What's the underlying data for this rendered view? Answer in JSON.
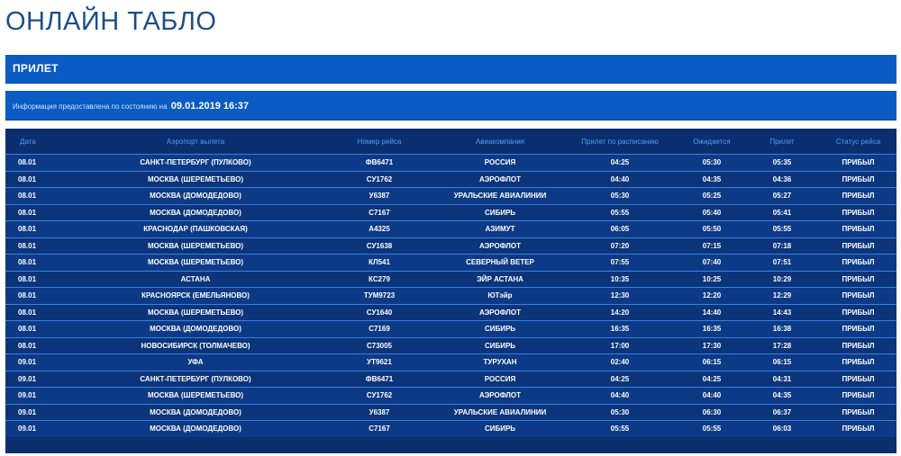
{
  "page": {
    "title": "ОНЛАЙН ТАБЛО",
    "section_title": "ПРИЛЕТ",
    "info_text": "Информация предоставлена по состоянию на",
    "info_datetime": "09.01.2019 16:37"
  },
  "table": {
    "headers": {
      "date": "Дата",
      "airport": "Аэропорт вылета",
      "flight": "Номер рейса",
      "airline": "Авиакомпания",
      "scheduled": "Прилет по расписанию",
      "expected": "Ожидается",
      "actual": "Прилет",
      "status": "Статус рейса"
    },
    "rows": [
      [
        "08.01",
        "САНКТ-ПЕТЕРБУРГ (ПУЛКОВО)",
        "ФВ6471",
        "РОССИЯ",
        "04:25",
        "05:30",
        "05:35",
        "ПРИБЫЛ"
      ],
      [
        "08.01",
        "МОСКВА (ШЕРЕМЕТЬЕВО)",
        "СУ1762",
        "АЭРОФЛОТ",
        "04:40",
        "04:35",
        "04:36",
        "ПРИБЫЛ"
      ],
      [
        "08.01",
        "МОСКВА (ДОМОДЕДОВО)",
        "У6387",
        "УРАЛЬСКИЕ АВИАЛИНИИ",
        "05:30",
        "05:25",
        "05:27",
        "ПРИБЫЛ"
      ],
      [
        "08.01",
        "МОСКВА (ДОМОДЕДОВО)",
        "С7167",
        "СИБИРЬ",
        "05:55",
        "05:40",
        "05:41",
        "ПРИБЫЛ"
      ],
      [
        "08.01",
        "КРАСНОДАР (ПАШКОВСКАЯ)",
        "А4325",
        "АЗИМУТ",
        "06:05",
        "05:50",
        "05:55",
        "ПРИБЫЛ"
      ],
      [
        "08.01",
        "МОСКВА (ШЕРЕМЕТЬЕВО)",
        "СУ1638",
        "АЭРОФЛОТ",
        "07:20",
        "07:15",
        "07:18",
        "ПРИБЫЛ"
      ],
      [
        "08.01",
        "МОСКВА (ШЕРЕМЕТЬЕВО)",
        "КЛ541",
        "СЕВЕРНЫЙ ВЕТЕР",
        "07:55",
        "07:40",
        "07:51",
        "ПРИБЫЛ"
      ],
      [
        "08.01",
        "АСТАНА",
        "КС279",
        "ЭЙР АСТАНА",
        "10:35",
        "10:25",
        "10:29",
        "ПРИБЫЛ"
      ],
      [
        "08.01",
        "КРАСНОЯРСК (ЕМЕЛЬЯНОВО)",
        "ТУМ9723",
        "ЮТэйр",
        "12:30",
        "12:20",
        "12:29",
        "ПРИБЫЛ"
      ],
      [
        "08.01",
        "МОСКВА (ШЕРЕМЕТЬЕВО)",
        "СУ1640",
        "АЭРОФЛОТ",
        "14:20",
        "14:40",
        "14:43",
        "ПРИБЫЛ"
      ],
      [
        "08.01",
        "МОСКВА (ДОМОДЕДОВО)",
        "С7169",
        "СИБИРЬ",
        "16:35",
        "16:35",
        "16:38",
        "ПРИБЫЛ"
      ],
      [
        "08.01",
        "НОВОСИБИРСК (ТОЛМАЧЕВО)",
        "С73005",
        "СИБИРЬ",
        "17:00",
        "17:30",
        "17:28",
        "ПРИБЫЛ"
      ],
      [
        "09.01",
        "УФА",
        "УТ9621",
        "ТУРУХАН",
        "02:40",
        "06:15",
        "06:15",
        "ПРИБЫЛ"
      ],
      [
        "09.01",
        "САНКТ-ПЕТЕРБУРГ (ПУЛКОВО)",
        "ФВ6471",
        "РОССИЯ",
        "04:25",
        "04:25",
        "04:31",
        "ПРИБЫЛ"
      ],
      [
        "09.01",
        "МОСКВА (ШЕРЕМЕТЬЕВО)",
        "СУ1762",
        "АЭРОФЛОТ",
        "04:40",
        "04:40",
        "04:35",
        "ПРИБЫЛ"
      ],
      [
        "09.01",
        "МОСКВА (ДОМОДЕДОВО)",
        "У6387",
        "УРАЛЬСКИЕ АВИАЛИНИИ",
        "05:30",
        "06:30",
        "06:37",
        "ПРИБЫЛ"
      ],
      [
        "09.01",
        "МОСКВА (ДОМОДЕДОВО)",
        "С7167",
        "СИБИРЬ",
        "05:55",
        "05:55",
        "06:03",
        "ПРИБЫЛ"
      ]
    ]
  },
  "colors": {
    "title": "#1c4e86",
    "panel": "#0a5bc3",
    "board": "#0b2f6e",
    "header_text": "#4d9bff"
  }
}
